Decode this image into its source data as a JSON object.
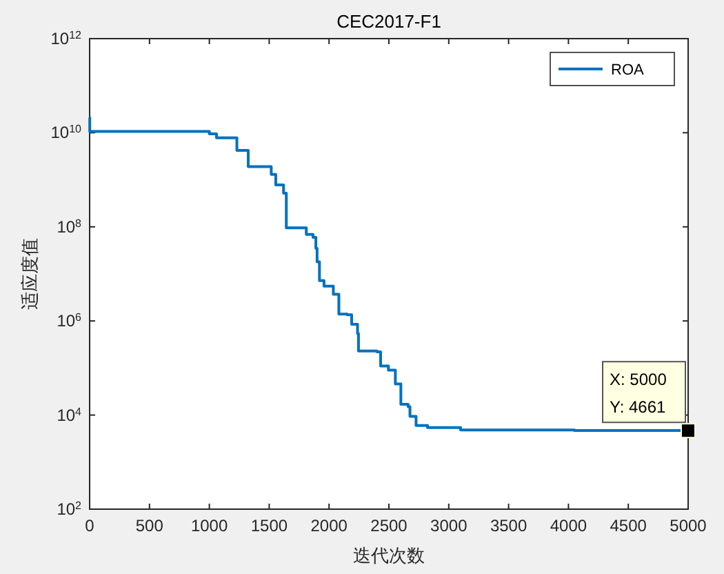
{
  "chart_data": {
    "type": "step",
    "title": "CEC2017-F1",
    "xlabel": "迭代次数",
    "ylabel": "适应度值",
    "log": true,
    "xlim": [
      0,
      5000
    ],
    "xticks": [
      0,
      500,
      1000,
      1500,
      2000,
      2500,
      3000,
      3500,
      4000,
      4500,
      5000
    ],
    "ylim": [
      100,
      1000000000000
    ],
    "yticks": [
      {
        "value": 100,
        "label": "10$^{2}$"
      },
      {
        "value": 10000,
        "label": "10$^{4}$"
      },
      {
        "value": 1000000,
        "label": "10$^{6}$"
      },
      {
        "value": 100000000,
        "label": "10$^{8}$"
      },
      {
        "value": 10000000000,
        "label": "10$^{10}$"
      },
      {
        "value": 1000000000000,
        "label": "10$^{12}$"
      }
    ],
    "grid": false,
    "legend": "top right",
    "marker": "none",
    "line_style": "solid",
    "x": [
      0,
      1,
      987,
      1000,
      1060,
      1230,
      1325,
      1517,
      1555,
      1620,
      1643,
      1747,
      1810,
      1866,
      1890,
      1900,
      1920,
      1958,
      2036,
      2082,
      2151,
      2189,
      2238,
      2246,
      2400,
      2431,
      2496,
      2554,
      2600,
      2661,
      2676,
      2727,
      2823,
      3099,
      4050,
      5000
    ],
    "series": [
      {
        "name": "ROA",
        "color": "#0072bd",
        "values": [
          21000000000,
          10700000000,
          10700000000,
          9500000000,
          7800000000,
          4200000000,
          1900000000,
          1300000000,
          780000000,
          520000000,
          95000000,
          95000000,
          69000000,
          60000000,
          35000000,
          18000000,
          7200000,
          5500000,
          3700000,
          1400000,
          1350000,
          850000,
          540000,
          230000,
          220000,
          110000,
          90000,
          46000,
          17000,
          15000,
          9400,
          6000,
          5400,
          4800,
          4700,
          4661
        ]
      }
    ],
    "annotations": [
      {
        "text": "X: 5000\nY: 4661",
        "x": 5000,
        "y": 4661
      }
    ]
  }
}
